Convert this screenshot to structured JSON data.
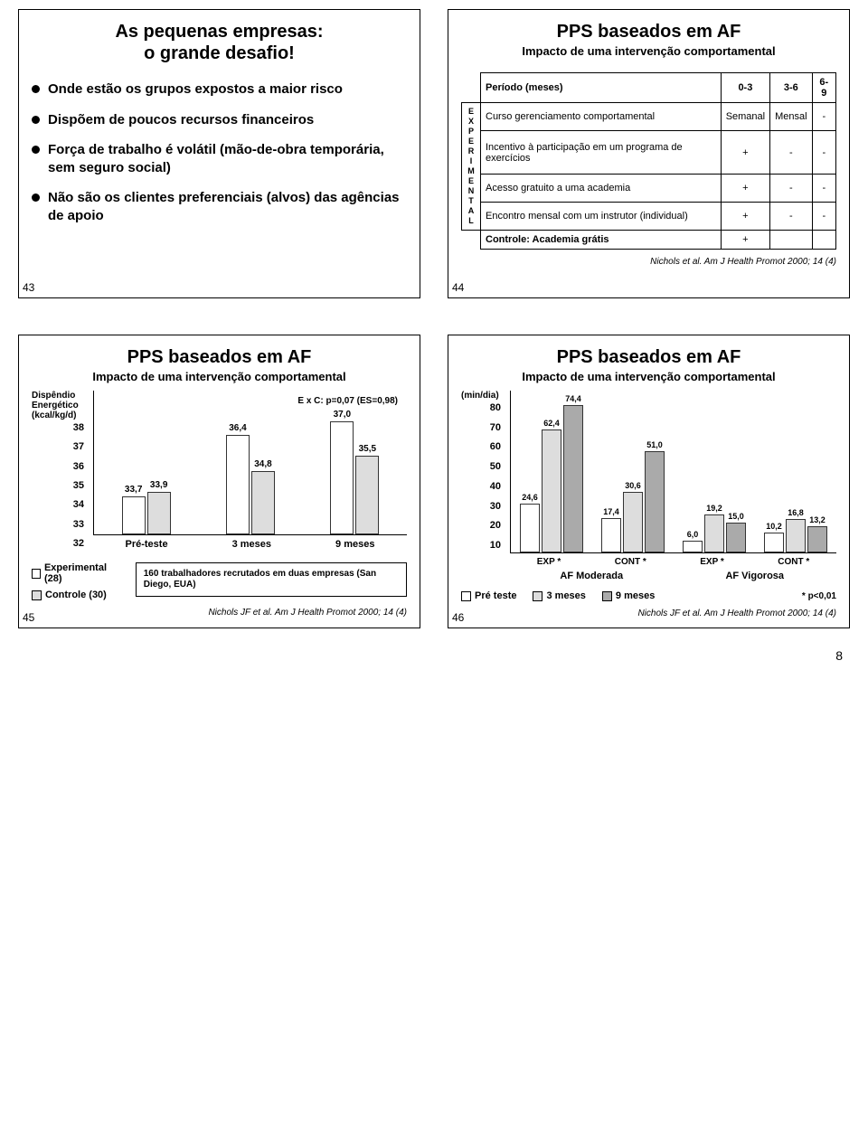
{
  "page_number": "8",
  "slide43": {
    "num": "43",
    "title": "As pequenas empresas:\no grande desafio!",
    "bullets": [
      "Onde estão os grupos expostos a maior risco",
      "Dispõem de poucos recursos financeiros",
      "Força de trabalho é volátil (mão-de-obra temporária, sem seguro social)",
      "Não são os clientes preferenciais (alvos) das agências de apoio"
    ]
  },
  "slide44": {
    "num": "44",
    "title": "PPS baseados em AF",
    "subtitle": "Impacto de uma intervenção comportamental",
    "table": {
      "header": [
        "Período (meses)",
        "0-3",
        "3-6",
        "6-9"
      ],
      "vlabel": "EXPERIMENTAL",
      "rows": [
        {
          "label": "Curso gerenciamento comportamental",
          "cells": [
            "Semanal",
            "Mensal",
            "-"
          ]
        },
        {
          "label": "Incentivo à participação em um programa de exercícios",
          "cells": [
            "+",
            "-",
            "-"
          ]
        },
        {
          "label": "Acesso gratuito a uma academia",
          "cells": [
            "+",
            "-",
            "-"
          ]
        },
        {
          "label": "Encontro mensal com um instrutor (individual)",
          "cells": [
            "+",
            "-",
            "-"
          ]
        }
      ],
      "footer": {
        "label": "Controle: Academia grátis",
        "cells": [
          "+",
          "",
          ""
        ]
      }
    },
    "citation": "Nichols et al. Am J Health Promot 2000; 14 (4)"
  },
  "slide45": {
    "num": "45",
    "title": "PPS baseados em AF",
    "subtitle": "Impacto de uma intervenção comportamental",
    "chart": {
      "ylabel": "Dispêndio\nEnergético\n(kcal/kg/d)",
      "ymin": 32,
      "ymax": 38,
      "ystep": 1,
      "yticks": [
        "38",
        "37",
        "36",
        "35",
        "34",
        "33",
        "32"
      ],
      "annotation": "E x C: p=0,07 (ES=0,98)",
      "categories": [
        "Pré-teste",
        "3 meses",
        "9 meses"
      ],
      "groups": [
        {
          "bars": [
            {
              "v": 33.7,
              "label": "33,7",
              "fill": 0
            },
            {
              "v": 33.9,
              "label": "33,9",
              "fill": 1
            }
          ]
        },
        {
          "bars": [
            {
              "v": 36.4,
              "label": "36,4",
              "fill": 0
            },
            {
              "v": 34.8,
              "label": "34,8",
              "fill": 1
            }
          ]
        },
        {
          "bars": [
            {
              "v": 37.0,
              "label": "37,0",
              "fill": 0
            },
            {
              "v": 35.5,
              "label": "35,5",
              "fill": 1
            }
          ]
        }
      ],
      "legend": [
        {
          "fill": 0,
          "label": "Experimental (28)"
        },
        {
          "fill": 1,
          "label": "Controle (30)"
        }
      ],
      "footnote": "160 trabalhadores recrutados em duas empresas (San Diego, EUA)"
    },
    "citation": "Nichols JF et al. Am J Health Promot 2000; 14 (4)"
  },
  "slide46": {
    "num": "46",
    "title": "PPS baseados em AF",
    "subtitle": "Impacto de uma intervenção comportamental",
    "chart": {
      "ylabel": "(min/dia)",
      "ymin": 10,
      "ymax": 80,
      "ystep": 10,
      "yticks": [
        "80",
        "70",
        "60",
        "50",
        "40",
        "30",
        "20",
        "10"
      ],
      "groups": [
        {
          "x": "EXP *",
          "bars": [
            {
              "v": 24.6,
              "label": "24,6",
              "fill": 0
            },
            {
              "v": 62.4,
              "label": "62,4",
              "fill": 1
            },
            {
              "v": 74.4,
              "label": "74,4",
              "fill": 2
            }
          ]
        },
        {
          "x": "CONT *",
          "bars": [
            {
              "v": 17.4,
              "label": "17,4",
              "fill": 0
            },
            {
              "v": 30.6,
              "label": "30,6",
              "fill": 1
            },
            {
              "v": 51.0,
              "label": "51,0",
              "fill": 2
            }
          ]
        },
        {
          "x": "EXP *",
          "bars": [
            {
              "v": 6.0,
              "label": "6,0",
              "fill": 0
            },
            {
              "v": 19.2,
              "label": "19,2",
              "fill": 1
            },
            {
              "v": 15.0,
              "label": "15,0",
              "fill": 2
            }
          ]
        },
        {
          "x": "CONT *",
          "bars": [
            {
              "v": 10.2,
              "label": "10,2",
              "fill": 0
            },
            {
              "v": 16.8,
              "label": "16,8",
              "fill": 1
            },
            {
              "v": 13.2,
              "label": "13,2",
              "fill": 2
            }
          ]
        }
      ],
      "x2": [
        "AF Moderada",
        "AF Vigorosa"
      ],
      "legend": [
        {
          "fill": 0,
          "label": "Pré teste"
        },
        {
          "fill": 1,
          "label": "3 meses"
        },
        {
          "fill": 2,
          "label": "9 meses"
        }
      ],
      "pnote": "* p<0,01"
    },
    "citation": "Nichols JF et al. Am J Health Promot 2000; 14 (4)"
  }
}
